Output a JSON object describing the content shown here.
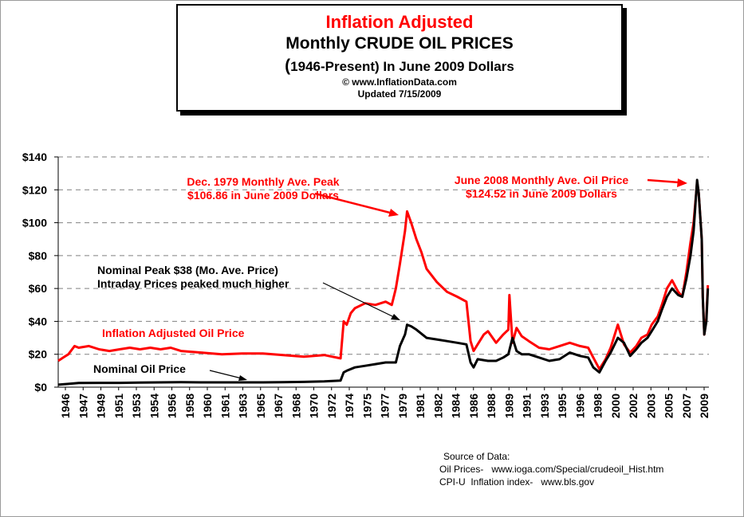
{
  "title": {
    "line1": "Inflation Adjusted",
    "line2": "Monthly CRUDE OIL PRICES",
    "line3_paren_open": "(",
    "line3_text": "1946-Present) In June 2009 Dollars",
    "line4": "© www.InflationData.com",
    "line5": "Updated 7/15/2009"
  },
  "source": {
    "heading": "Source of Data:",
    "line1": "Oil Prices-   www.ioga.com/Special/crudeoil_Hist.htm",
    "line2": "CPI-U  Inflation index-   www.bls.gov"
  },
  "colors": {
    "adjusted": "#ff0000",
    "nominal": "#000000",
    "grid": "#808080"
  },
  "chart_data": {
    "type": "line",
    "title": "Inflation Adjusted Monthly CRUDE OIL PRICES",
    "ylim": [
      0,
      140
    ],
    "xlim": [
      1946.0,
      2009.6
    ],
    "y_ticks": [
      0,
      20,
      40,
      60,
      80,
      100,
      120,
      140
    ],
    "y_tick_labels": [
      "$0",
      "$20",
      "$40",
      "$60",
      "$80",
      "$100",
      "$120",
      "$140"
    ],
    "x_tick_labels": [
      "1946",
      "1947",
      "1949",
      "1951",
      "1953",
      "1954",
      "1956",
      "1958",
      "1960",
      "1961",
      "1963",
      "1965",
      "1967",
      "1968",
      "1970",
      "1972",
      "1974",
      "1975",
      "1977",
      "1979",
      "1981",
      "1982",
      "1984",
      "1986",
      "1988",
      "1989",
      "1991",
      "1993",
      "1995",
      "1996",
      "1998",
      "2000",
      "2002",
      "2003",
      "2005",
      "2007",
      "2009"
    ],
    "grid": "horizontal dashed",
    "series": [
      {
        "name": "Inflation Adjusted Oil Price",
        "color": "#ff0000",
        "x": [
          1946.0,
          1946.5,
          1947.0,
          1947.6,
          1948.0,
          1949.0,
          1950.0,
          1951.0,
          1952.0,
          1953.0,
          1954.0,
          1955.0,
          1956.0,
          1957.0,
          1958.0,
          1960.0,
          1962.0,
          1964.0,
          1966.0,
          1968.0,
          1970.0,
          1972.0,
          1973.6,
          1973.9,
          1974.2,
          1974.6,
          1975.0,
          1976.0,
          1977.0,
          1978.0,
          1978.6,
          1979.0,
          1979.4,
          1979.9,
          1980.1,
          1980.5,
          1981.0,
          1981.5,
          1982.0,
          1983.0,
          1984.0,
          1985.0,
          1985.9,
          1986.3,
          1986.6,
          1987.0,
          1987.6,
          1988.0,
          1988.8,
          1989.5,
          1990.0,
          1990.1,
          1990.4,
          1990.8,
          1991.3,
          1992.0,
          1993.0,
          1994.0,
          1995.0,
          1996.0,
          1997.0,
          1997.8,
          1998.3,
          1998.9,
          1999.5,
          2000.0,
          2000.7,
          2001.3,
          2001.9,
          2002.5,
          2003.0,
          2003.6,
          2004.0,
          2004.6,
          2005.0,
          2005.5,
          2006.0,
          2006.6,
          2007.0,
          2007.4,
          2007.8,
          2008.1,
          2008.45,
          2008.6,
          2008.9,
          2009.0,
          2009.15,
          2009.35,
          2009.5
        ],
        "values": [
          16,
          18,
          20,
          25,
          24,
          25,
          23,
          22,
          23,
          24,
          23,
          24,
          23,
          24,
          22,
          21,
          20,
          20.5,
          20.5,
          19.5,
          18.5,
          19.5,
          17.5,
          40,
          38,
          45,
          48,
          51,
          50,
          52,
          50,
          60,
          75,
          95,
          106.86,
          100,
          90,
          82,
          72,
          64,
          58,
          55,
          52,
          28,
          22,
          26,
          32,
          34,
          27,
          32,
          35,
          56,
          27,
          36,
          31,
          28,
          24,
          23,
          25,
          27,
          25,
          24,
          18,
          11,
          17,
          24,
          38,
          26,
          21,
          25,
          30,
          32,
          38,
          43,
          50,
          60,
          65,
          58,
          55,
          70,
          88,
          100,
          124.52,
          118,
          90,
          55,
          32,
          42,
          62
        ]
      },
      {
        "name": "Nominal Oil Price",
        "color": "#000000",
        "x": [
          1946.0,
          1947.0,
          1948.0,
          1950.0,
          1952.0,
          1954.0,
          1956.0,
          1958.0,
          1960.0,
          1962.0,
          1964.0,
          1966.0,
          1968.0,
          1970.0,
          1972.0,
          1973.6,
          1973.9,
          1974.2,
          1975.0,
          1976.0,
          1977.0,
          1978.0,
          1979.0,
          1979.4,
          1979.9,
          1980.1,
          1980.5,
          1981.0,
          1982.0,
          1983.0,
          1984.0,
          1985.0,
          1985.9,
          1986.3,
          1986.6,
          1987.0,
          1988.0,
          1988.8,
          1989.5,
          1990.0,
          1990.4,
          1990.8,
          1991.3,
          1992.0,
          1993.0,
          1994.0,
          1995.0,
          1996.0,
          1997.0,
          1997.8,
          1998.3,
          1998.9,
          1999.5,
          2000.0,
          2000.7,
          2001.3,
          2001.9,
          2002.5,
          2003.0,
          2003.6,
          2004.0,
          2004.6,
          2005.0,
          2005.5,
          2006.0,
          2006.6,
          2007.0,
          2007.4,
          2007.8,
          2008.1,
          2008.45,
          2008.6,
          2008.9,
          2009.0,
          2009.15,
          2009.35,
          2009.5
        ],
        "values": [
          1.5,
          2,
          2.5,
          2.6,
          2.6,
          2.8,
          2.9,
          3,
          2.9,
          2.9,
          2.9,
          2.9,
          3,
          3.2,
          3.5,
          4,
          9,
          10,
          12,
          13,
          14,
          15,
          15,
          25,
          32,
          38,
          37,
          35,
          30,
          29,
          28,
          27,
          26,
          15,
          12,
          17,
          16,
          16,
          18,
          20,
          30,
          22,
          20,
          20,
          18,
          16,
          17,
          21,
          19,
          18,
          12,
          9,
          16,
          21,
          30,
          27,
          19,
          23,
          27,
          30,
          34,
          40,
          47,
          55,
          60,
          56,
          55,
          66,
          80,
          95,
          126,
          118,
          90,
          55,
          32,
          40,
          60
        ]
      }
    ],
    "annotations": [
      {
        "text_line1": "Dec. 1979 Monthly Ave. Peak",
        "text_line2": "$106.86 in June 2009 Dollars",
        "color": "#ff0000"
      },
      {
        "text_line1": "June 2008 Monthly Ave. Oil  Price",
        "text_line2": "$124.52 in June 2009 Dollars",
        "color": "#ff0000"
      },
      {
        "text_line1": "Nominal Peak $38 (Mo. Ave. Price)",
        "text_line2": "Intraday Prices peaked much higher",
        "color": "#000000"
      },
      {
        "text_line1": "Inflation Adjusted Oil Price",
        "color": "#ff0000"
      },
      {
        "text_line1": "Nominal Oil Price",
        "color": "#000000"
      }
    ]
  }
}
